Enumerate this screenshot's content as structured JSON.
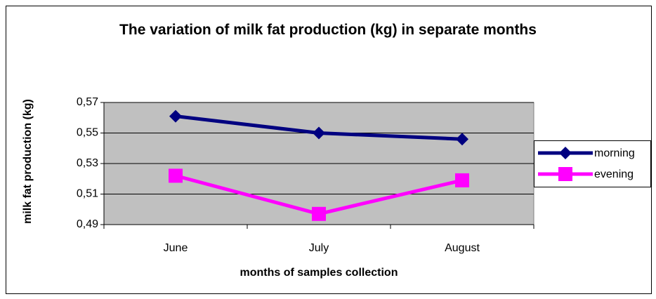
{
  "chart_data": {
    "type": "line",
    "title": "The variation of milk fat production (kg) in separate months",
    "x_label": "months of samples collection",
    "y_label": "milk fat production (kg)",
    "categories": [
      "June",
      "July",
      "August"
    ],
    "series": [
      {
        "name": "morning",
        "color": "#000080",
        "marker": "diamond",
        "values": [
          0.561,
          0.55,
          0.546
        ]
      },
      {
        "name": "evening",
        "color": "#ff00ff",
        "marker": "square",
        "values": [
          0.522,
          0.497,
          0.519
        ]
      }
    ],
    "ylim": [
      0.49,
      0.57
    ],
    "yticks": [
      {
        "value": 0.49,
        "label": "0,49"
      },
      {
        "value": 0.51,
        "label": "0,51"
      },
      {
        "value": 0.53,
        "label": "0,53"
      },
      {
        "value": 0.55,
        "label": "0,55"
      },
      {
        "value": 0.57,
        "label": "0,57"
      }
    ],
    "grid": true,
    "legend": "right"
  }
}
